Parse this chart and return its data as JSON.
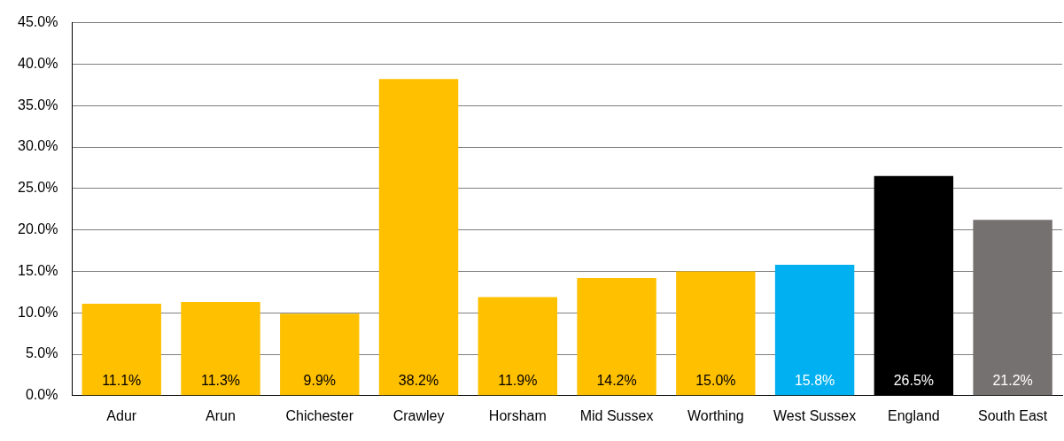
{
  "chart_data": {
    "type": "bar",
    "categories": [
      "Adur",
      "Arun",
      "Chichester",
      "Crawley",
      "Horsham",
      "Mid Sussex",
      "Worthing",
      "West Sussex",
      "England",
      "South East"
    ],
    "values": [
      11.1,
      11.3,
      9.9,
      38.2,
      11.9,
      14.2,
      15.0,
      15.8,
      26.5,
      21.2
    ],
    "colors": [
      "#ffc000",
      "#ffc000",
      "#ffc000",
      "#ffc000",
      "#ffc000",
      "#ffc000",
      "#ffc000",
      "#00b0f0",
      "#000000",
      "#767171"
    ],
    "value_labels": [
      "11.1%",
      "11.3%",
      "9.9%",
      "38.2%",
      "11.9%",
      "14.2%",
      "15.0%",
      "15.8%",
      "26.5%",
      "21.2%"
    ],
    "ylim": [
      0,
      45
    ],
    "yticks": [
      {
        "value": 0,
        "label": "0.0%"
      },
      {
        "value": 5,
        "label": "5.0%"
      },
      {
        "value": 10,
        "label": "10.0%"
      },
      {
        "value": 15,
        "label": "15.0%"
      },
      {
        "value": 20,
        "label": "20.0%"
      },
      {
        "value": 25,
        "label": "25.0%"
      },
      {
        "value": 30,
        "label": "30.0%"
      },
      {
        "value": 35,
        "label": "35.0%"
      },
      {
        "value": 40,
        "label": "40.0%"
      },
      {
        "value": 45,
        "label": "45.0%"
      }
    ],
    "grid": "y"
  }
}
